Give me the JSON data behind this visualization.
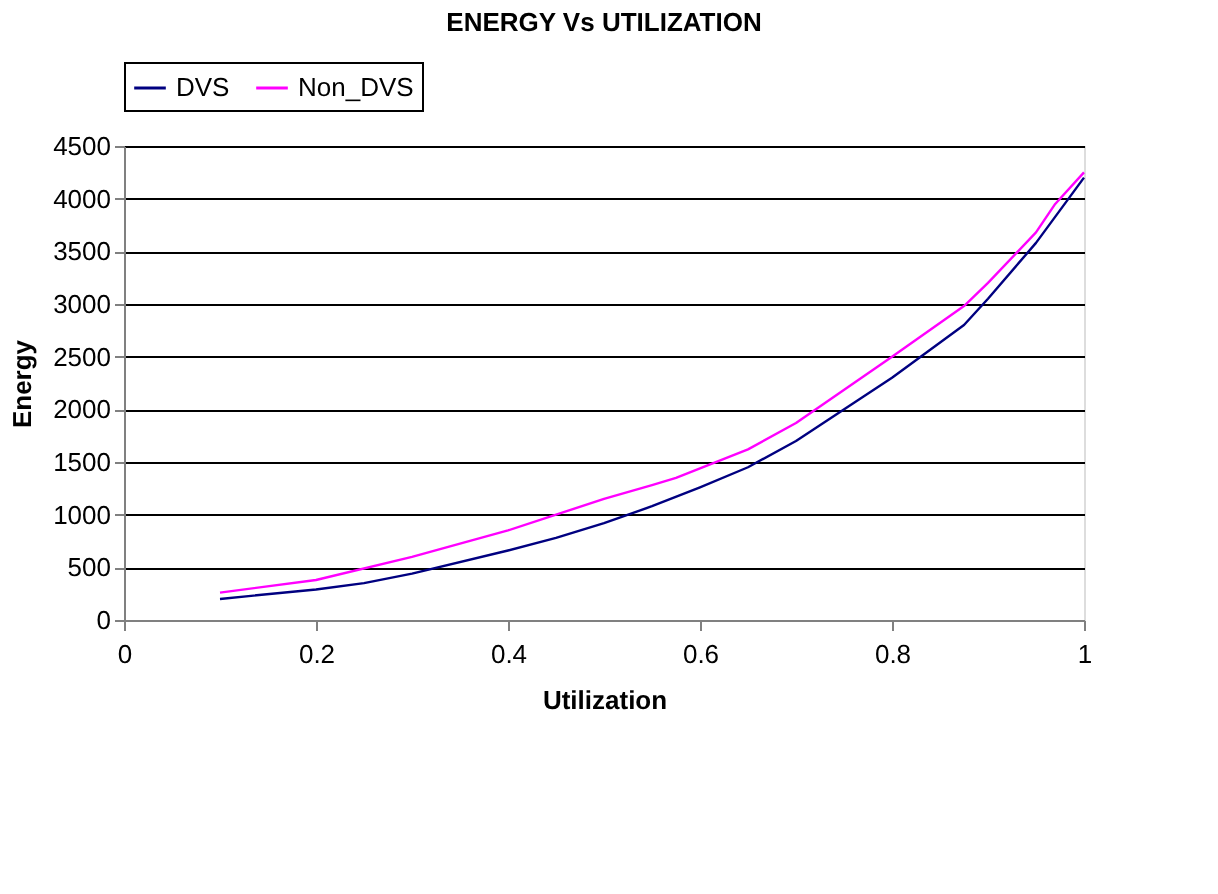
{
  "chart_data": {
    "type": "line",
    "title": "ENERGY Vs UTILIZATION",
    "xlabel": "Utilization",
    "ylabel": "Energy",
    "series": [
      {
        "name": "DVS",
        "color": "#000080",
        "x": [
          0.1,
          0.2,
          0.25,
          0.3,
          0.4,
          0.45,
          0.5,
          0.55,
          0.6,
          0.65,
          0.7,
          0.8,
          0.875,
          0.9,
          0.95,
          1.0
        ],
        "values": [
          200,
          290,
          350,
          440,
          660,
          780,
          920,
          1080,
          1260,
          1450,
          1700,
          2300,
          2800,
          3050,
          3580,
          4200
        ]
      },
      {
        "name": "Non_DVS",
        "color": "#ff00ff",
        "x": [
          0.1,
          0.2,
          0.3,
          0.4,
          0.5,
          0.55,
          0.575,
          0.65,
          0.7,
          0.8,
          0.875,
          0.9,
          0.95,
          0.97,
          1.0
        ],
        "values": [
          260,
          380,
          600,
          850,
          1150,
          1280,
          1350,
          1620,
          1870,
          2500,
          2980,
          3200,
          3680,
          3950,
          4250
        ]
      }
    ],
    "xlim": [
      0,
      1
    ],
    "xticks": [
      0,
      0.2,
      0.4,
      0.6,
      0.8,
      1
    ],
    "ylim": [
      0,
      4500
    ],
    "yticks": [
      0,
      500,
      1000,
      1500,
      2000,
      2500,
      3000,
      3500,
      4000,
      4500
    ],
    "grid": "y",
    "legend": "top",
    "marker": "none",
    "line_style": "solid"
  }
}
